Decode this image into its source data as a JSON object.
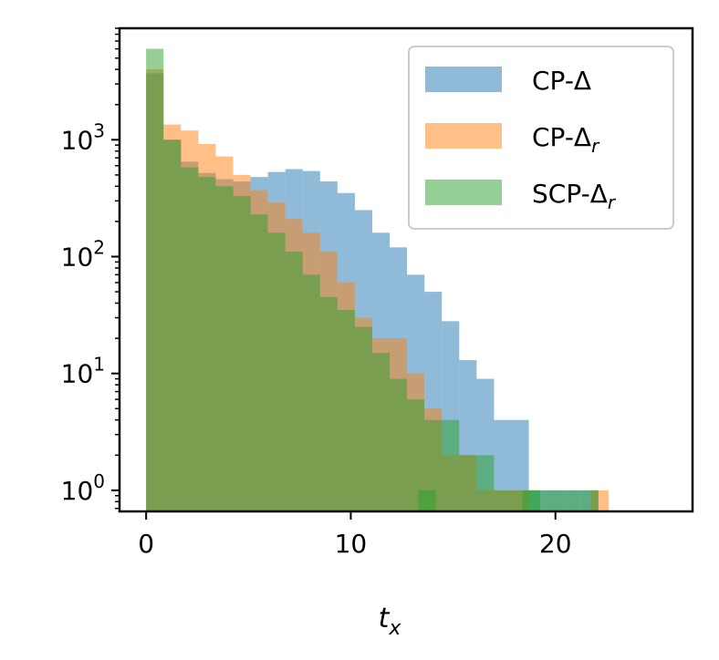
{
  "chart_data": {
    "type": "histogram",
    "xlabel": "t_x",
    "ylabel": "",
    "xlim": [
      -1.3,
      26.7
    ],
    "ylim": [
      0.66,
      9000
    ],
    "yscale": "log",
    "grid": false,
    "legend_position": "top-right",
    "bin_edges_start": 0,
    "bin_width": 0.85,
    "x_ticks": [
      0,
      10,
      20
    ],
    "y_ticks": [
      {
        "value": 1,
        "base": "10",
        "exp": "0"
      },
      {
        "value": 10,
        "base": "10",
        "exp": "1"
      },
      {
        "value": 100,
        "base": "10",
        "exp": "2"
      },
      {
        "value": 1000,
        "base": "10",
        "exp": "3"
      }
    ],
    "series": [
      {
        "name": "CP-Δ",
        "color": "#1f77b4",
        "opacity": 0.5,
        "values": [
          3700,
          1000,
          650,
          520,
          460,
          440,
          480,
          530,
          560,
          540,
          440,
          350,
          250,
          160,
          120,
          70,
          50,
          28,
          13,
          9,
          4,
          4,
          1,
          1,
          1,
          1,
          0,
          0,
          0,
          0,
          0
        ]
      },
      {
        "name": "CP-Δ_r",
        "color": "#ff7f0e",
        "opacity": 0.5,
        "values": [
          4000,
          1350,
          1200,
          920,
          720,
          500,
          370,
          290,
          210,
          160,
          110,
          60,
          30,
          20,
          20,
          10,
          5,
          2,
          2,
          1,
          1,
          1,
          0,
          0,
          0,
          0,
          0,
          0,
          0,
          0,
          0
        ],
        "extra_bars": [
          {
            "x": 21.75,
            "value": 1
          }
        ]
      },
      {
        "name": "SCP-Δ_r",
        "color": "#2ca02c",
        "opacity": 0.5,
        "values": [
          6000,
          1000,
          580,
          480,
          400,
          330,
          230,
          160,
          110,
          70,
          45,
          35,
          25,
          15,
          9,
          6,
          4,
          4,
          2,
          2,
          1,
          1,
          1,
          1,
          1,
          1,
          0,
          0,
          0,
          0,
          0
        ],
        "extra_bars": [
          {
            "x": 13.3,
            "value": 1
          },
          {
            "x": 18.4,
            "value": 1
          }
        ]
      }
    ],
    "legend": [
      {
        "label": "CP-Δ",
        "sub": "",
        "color": "#1f77b4"
      },
      {
        "label": "CP-Δ",
        "sub": "r",
        "color": "#ff7f0e"
      },
      {
        "label": "SCP-Δ",
        "sub": "r",
        "color": "#2ca02c"
      }
    ]
  }
}
